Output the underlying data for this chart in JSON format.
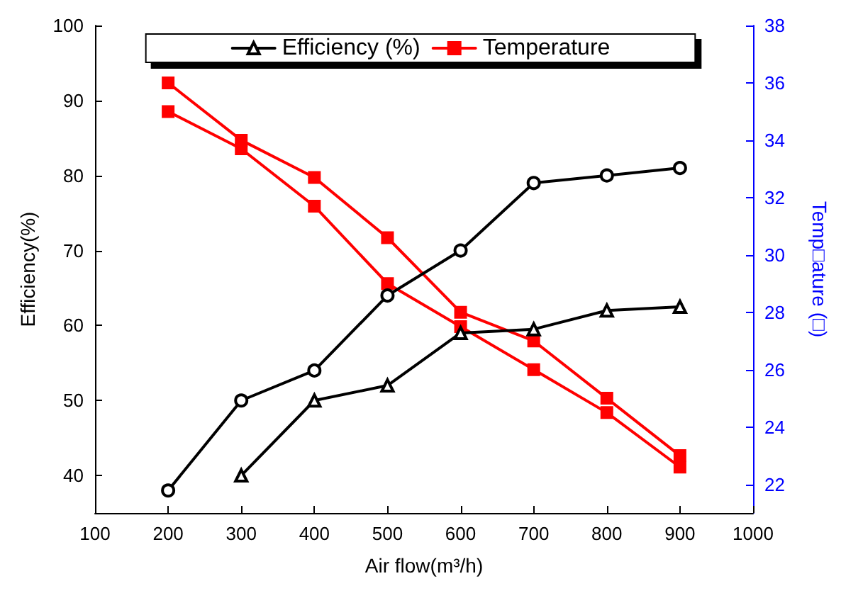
{
  "chart_data": {
    "type": "line",
    "xlabel": "Air flow(m³/h)",
    "ylabel": "Efficiency(%)",
    "y2label": "Temp□ature (□)",
    "xlim": [
      100,
      1000
    ],
    "xticks": [
      100,
      200,
      300,
      400,
      500,
      600,
      700,
      800,
      900,
      1000
    ],
    "ylim": [
      35,
      100
    ],
    "yticks": [
      40,
      50,
      60,
      70,
      80,
      90,
      100
    ],
    "y2lim": [
      21,
      38
    ],
    "y2ticks": [
      22,
      24,
      26,
      28,
      30,
      32,
      34,
      36,
      38
    ],
    "legend": "top",
    "grid": false,
    "line_style": "solid",
    "series": [
      {
        "color": "#000000",
        "marker": "circle",
        "x": [
          200,
          300,
          400,
          500,
          600,
          700,
          800,
          900
        ],
        "values": [
          38,
          50,
          54,
          64,
          70,
          79,
          80,
          81
        ]
      },
      {
        "name": "Efficiency (%)",
        "color": "#000000",
        "marker": "triangle",
        "x": [
          300,
          400,
          500,
          600,
          700,
          800,
          900
        ],
        "values": [
          40,
          50,
          52,
          59,
          59.5,
          62,
          62.5
        ]
      },
      {
        "name": "Temperature",
        "color": "#ff0000",
        "marker": "square",
        "axis": "y2",
        "x": [
          200,
          300,
          400,
          500,
          600,
          700,
          800,
          900
        ],
        "values": [
          35,
          33.7,
          31.7,
          29,
          27.5,
          26,
          24.5,
          22.6
        ]
      },
      {
        "color": "#ff0000",
        "marker": "square",
        "axis": "y2",
        "x": [
          200,
          300,
          400,
          500,
          600,
          700,
          800,
          900
        ],
        "values": [
          36,
          34,
          32.7,
          30.6,
          28,
          27,
          25,
          23
        ]
      }
    ]
  }
}
